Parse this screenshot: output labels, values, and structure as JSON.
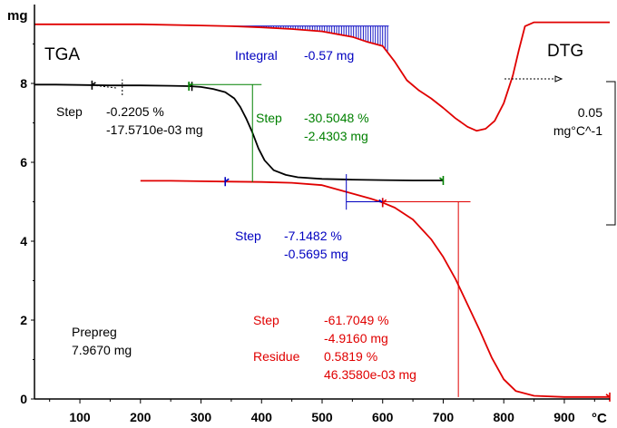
{
  "chart_data": {
    "type": "line",
    "y_unit_label": "mg",
    "x_unit_label": "°C",
    "left_axis_label": "TGA",
    "right_axis_label": "DTG",
    "dtg_scale": {
      "value": "0.05",
      "unit": "mg°C^-1"
    },
    "xlim": [
      25,
      975
    ],
    "ylim": [
      0,
      10
    ],
    "x_ticks": [
      100,
      200,
      300,
      400,
      500,
      600,
      700,
      800,
      900
    ],
    "y_ticks": [
      0,
      2,
      4,
      6,
      8
    ],
    "sample": {
      "name": "Prepreg",
      "mass": "7.9670 mg"
    },
    "series": [
      {
        "id": "tga",
        "color": "#000000",
        "x": [
          25,
          60,
          100,
          150,
          200,
          250,
          280,
          300,
          320,
          340,
          355,
          365,
          375,
          385,
          395,
          405,
          420,
          440,
          460,
          500,
          550,
          600,
          650,
          700
        ],
        "y": [
          7.97,
          7.97,
          7.96,
          7.95,
          7.95,
          7.94,
          7.93,
          7.91,
          7.86,
          7.78,
          7.62,
          7.4,
          7.1,
          6.75,
          6.35,
          6.05,
          5.8,
          5.68,
          5.62,
          5.58,
          5.56,
          5.55,
          5.54,
          5.54
        ]
      },
      {
        "id": "tga-shifted",
        "color": "#e00000",
        "x": [
          200,
          250,
          300,
          350,
          400,
          450,
          500,
          540,
          580,
          600,
          620,
          650,
          680,
          700,
          720,
          740,
          760,
          780,
          800,
          820,
          850,
          900,
          950,
          975
        ],
        "y": [
          5.53,
          5.53,
          5.52,
          5.51,
          5.5,
          5.48,
          5.42,
          5.25,
          5.08,
          4.98,
          4.85,
          4.55,
          4.05,
          3.6,
          3.05,
          2.4,
          1.75,
          1.05,
          0.5,
          0.2,
          0.08,
          0.05,
          0.05,
          0.05
        ]
      },
      {
        "id": "dtg",
        "color": "#e00000",
        "x": [
          25,
          100,
          200,
          300,
          350,
          400,
          450,
          500,
          550,
          575,
          600,
          620,
          640,
          660,
          680,
          700,
          720,
          740,
          755,
          770,
          785,
          800,
          815,
          825,
          835,
          850,
          900,
          975
        ],
        "y": [
          9.5,
          9.5,
          9.5,
          9.47,
          9.45,
          9.42,
          9.38,
          9.32,
          9.18,
          9.05,
          8.95,
          8.55,
          8.08,
          7.82,
          7.62,
          7.38,
          7.12,
          6.9,
          6.8,
          6.85,
          7.05,
          7.5,
          8.2,
          8.85,
          9.45,
          9.55,
          9.55,
          9.55
        ]
      }
    ],
    "integral": {
      "range": [
        340,
        610
      ],
      "label": "Integral",
      "value": "-0.57 mg"
    },
    "steps": [
      {
        "id": "step1",
        "color": "#000000",
        "x_range": [
          120,
          285
        ],
        "labels": [
          "Step",
          "-0.2205 %",
          "-17.5710e-03 mg"
        ]
      },
      {
        "id": "step2",
        "color": "#008000",
        "x_range": [
          280,
          700
        ],
        "labels": [
          "Step",
          "-30.5048 %",
          "-2.4303 mg"
        ]
      },
      {
        "id": "step3",
        "color": "#0000c0",
        "x_range": [
          340,
          600
        ],
        "labels": [
          "Step",
          "-7.1482 %",
          "-0.5695 mg"
        ]
      },
      {
        "id": "step4",
        "color": "#e00000",
        "x_range": [
          600,
          975
        ],
        "labels": [
          "Step",
          "-61.7049 %",
          "-4.9160 mg"
        ],
        "residue": {
          "label": "Residue",
          "percent": "0.5819 %",
          "mass": "46.3580e-03 mg"
        }
      }
    ]
  }
}
